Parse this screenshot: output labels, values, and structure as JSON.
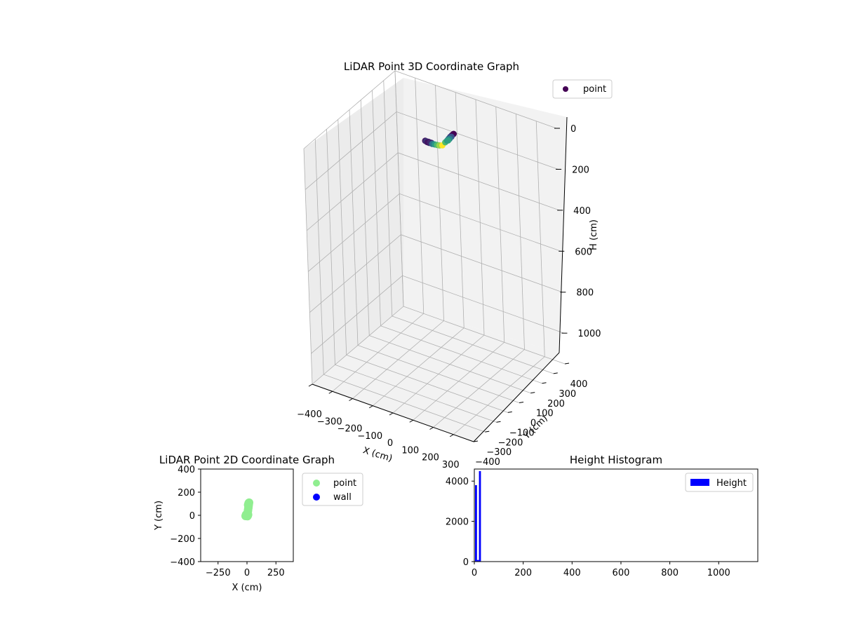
{
  "chart_data": [
    {
      "type": "scatter3d",
      "title": "LiDAR Point 3D Coordinate Graph",
      "xlabel": "X (cm)",
      "ylabel": "Y (cm)",
      "zlabel": "H (cm)",
      "xlim": [
        -400,
        400
      ],
      "ylim": [
        -400,
        400
      ],
      "zlim": [
        0,
        1150
      ],
      "zaxis_inverted": true,
      "xticks": [
        -400,
        -300,
        -200,
        -100,
        0,
        100,
        200,
        300
      ],
      "yticks": [
        -400,
        -300,
        -200,
        -100,
        0,
        100,
        200,
        300,
        400
      ],
      "zticks": [
        0,
        200,
        400,
        600,
        800,
        1000
      ],
      "legend": [
        "point"
      ],
      "legend_position": "top-right",
      "colormap": "viridis",
      "grid": true,
      "series": [
        {
          "name": "point",
          "x": [
            -25,
            -20,
            -15,
            -10,
            -5,
            0,
            5,
            -22,
            -12,
            -2,
            4,
            10,
            16,
            22,
            28,
            34,
            38,
            40,
            42,
            44,
            46,
            48,
            45,
            42,
            40
          ],
          "y": [
            0,
            2,
            -2,
            1,
            -1,
            0,
            2,
            4,
            -4,
            3,
            10,
            20,
            30,
            40,
            55,
            70,
            80,
            90,
            100,
            110,
            115,
            120,
            105,
            95,
            85
          ],
          "h": [
            20,
            22,
            21,
            20,
            23,
            22,
            21,
            24,
            20,
            22,
            30,
            35,
            40,
            45,
            50,
            40,
            35,
            30,
            25,
            22,
            20,
            18,
            26,
            32,
            36
          ]
        }
      ]
    },
    {
      "type": "scatter",
      "title": "LiDAR Point 2D Coordinate Graph",
      "xlabel": "X (cm)",
      "ylabel": "Y (cm)",
      "xlim": [
        -400,
        400
      ],
      "ylim": [
        -400,
        400
      ],
      "xticks": [
        -250,
        0,
        250
      ],
      "yticks": [
        -400,
        -200,
        0,
        200,
        400
      ],
      "legend_position": "outside-right",
      "series": [
        {
          "name": "point",
          "color": "#90ee90",
          "x": [
            -12,
            -8,
            -4,
            0,
            4,
            8,
            10,
            -10,
            -6,
            2,
            6,
            8,
            10,
            12,
            14,
            16,
            18,
            14,
            10
          ],
          "y": [
            -6,
            6,
            -4,
            4,
            -8,
            0,
            6,
            0,
            8,
            -2,
            20,
            35,
            50,
            65,
            80,
            95,
            110,
            105,
            90
          ]
        },
        {
          "name": "wall",
          "color": "#0000ff",
          "x": [],
          "y": []
        }
      ]
    },
    {
      "type": "bar",
      "title": "Height Histogram",
      "xlim": [
        0,
        1160
      ],
      "ylim": [
        0,
        4600
      ],
      "xticks": [
        0,
        200,
        400,
        600,
        800,
        1000
      ],
      "yticks": [
        0,
        2000,
        4000
      ],
      "legend_position": "top-right",
      "series": [
        {
          "name": "Height",
          "color": "#0000ff",
          "bins": [
            [
              3,
              11
            ],
            [
              11,
              19
            ],
            [
              19,
              27
            ]
          ],
          "values": [
            3800,
            80,
            4500
          ]
        }
      ]
    }
  ]
}
